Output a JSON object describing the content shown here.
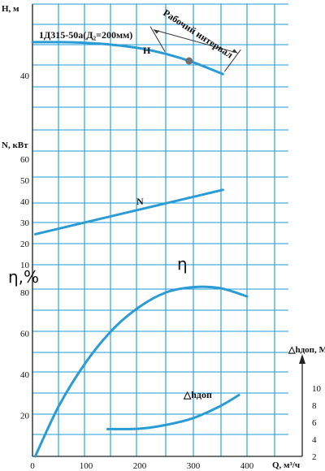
{
  "chart_data": {
    "type": "line",
    "title": "1Д315-50а(Д₂=200мм)",
    "x_axis": {
      "label": "Q, м³/ч",
      "range": [
        0,
        450
      ],
      "ticks": [
        "0",
        "100",
        "200",
        "300",
        "400"
      ]
    },
    "panels": {
      "head": {
        "label": "H, м",
        "range": [
          32.5,
          55
        ],
        "ticks": [
          "40"
        ],
        "series": [
          {
            "name": "H",
            "x": [
              0,
              50,
              100,
              150,
              200,
              250,
              300,
              355
            ],
            "y": [
              53.7,
              53.7,
              53.4,
              52.6,
              51.2,
              48.8,
              45.4,
              40.6
            ]
          }
        ],
        "operating_point": {
          "x": 292,
          "y": 46.0
        },
        "working_range": {
          "label": "Рабочий интервал",
          "x_start": 250,
          "x_end": 355
        }
      },
      "power": {
        "label": "N, кВт",
        "range": [
          10,
          70
        ],
        "ticks": [
          "10",
          "20",
          "30",
          "40",
          "50",
          "60"
        ],
        "series": [
          {
            "name": "N",
            "x": [
              5,
              355
            ],
            "y": [
              24.5,
              45.5
            ]
          }
        ]
      },
      "efficiency": {
        "label": "η,%",
        "range": [
          0,
          90
        ],
        "ticks": [
          "20",
          "40",
          "60",
          "80"
        ],
        "series": [
          {
            "name": "η",
            "x": [
              5,
              50,
              100,
              150,
              200,
              250,
              300,
              350,
              400
            ],
            "y": [
              0,
              25,
              46,
              62,
              73,
              80,
              82.5,
              82,
              78
            ]
          }
        ]
      },
      "npsh": {
        "label": "△hдоп, М",
        "range": [
          2,
          12
        ],
        "ticks": [
          "2",
          "4",
          "6",
          "8",
          "10"
        ],
        "series": [
          {
            "name": "△hдоп",
            "x": [
              140,
              200,
              250,
              300,
              350,
              385
            ],
            "y": [
              5.2,
              5.25,
              5.7,
              6.5,
              7.9,
              9.2
            ]
          }
        ]
      }
    },
    "grid": true
  }
}
